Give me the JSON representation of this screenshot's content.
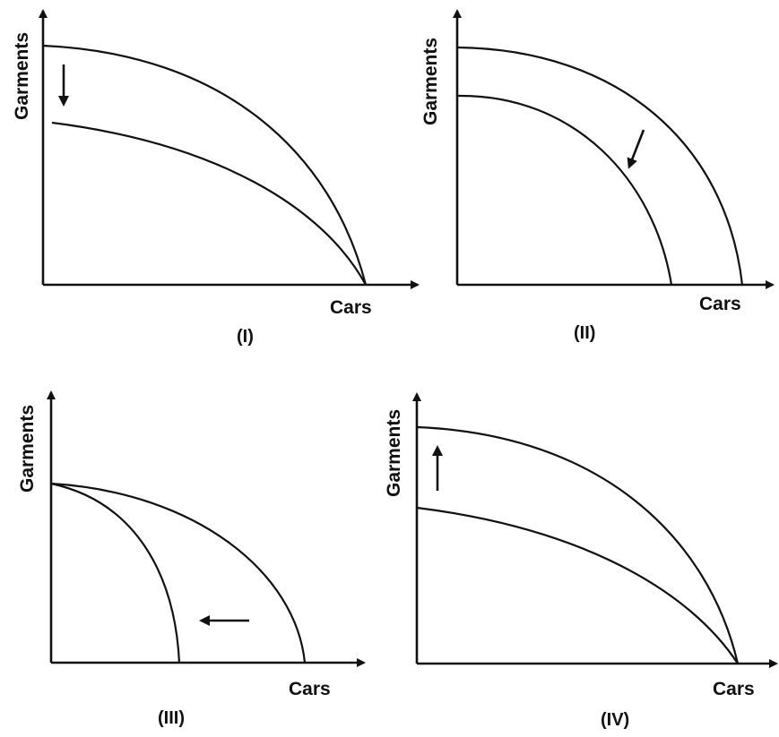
{
  "panels": [
    {
      "id": "I",
      "caption": "(I)",
      "x_axis_label": "Cars",
      "y_axis_label": "Garments",
      "curves": [
        "outer",
        "inner"
      ],
      "shift_direction": "down"
    },
    {
      "id": "II",
      "caption": "(II)",
      "x_axis_label": "Cars",
      "y_axis_label": "Garments",
      "curves": [
        "outer",
        "inner"
      ],
      "shift_direction": "down-left"
    },
    {
      "id": "III",
      "caption": "(III)",
      "x_axis_label": "Cars",
      "y_axis_label": "Garments",
      "curves": [
        "outer",
        "inner"
      ],
      "shift_direction": "left"
    },
    {
      "id": "IV",
      "caption": "(IV)",
      "x_axis_label": "Cars",
      "y_axis_label": "Garments",
      "curves": [
        "outer",
        "inner"
      ],
      "shift_direction": "up"
    }
  ],
  "colors": {
    "ink": "#111111",
    "background": "#ffffff"
  }
}
